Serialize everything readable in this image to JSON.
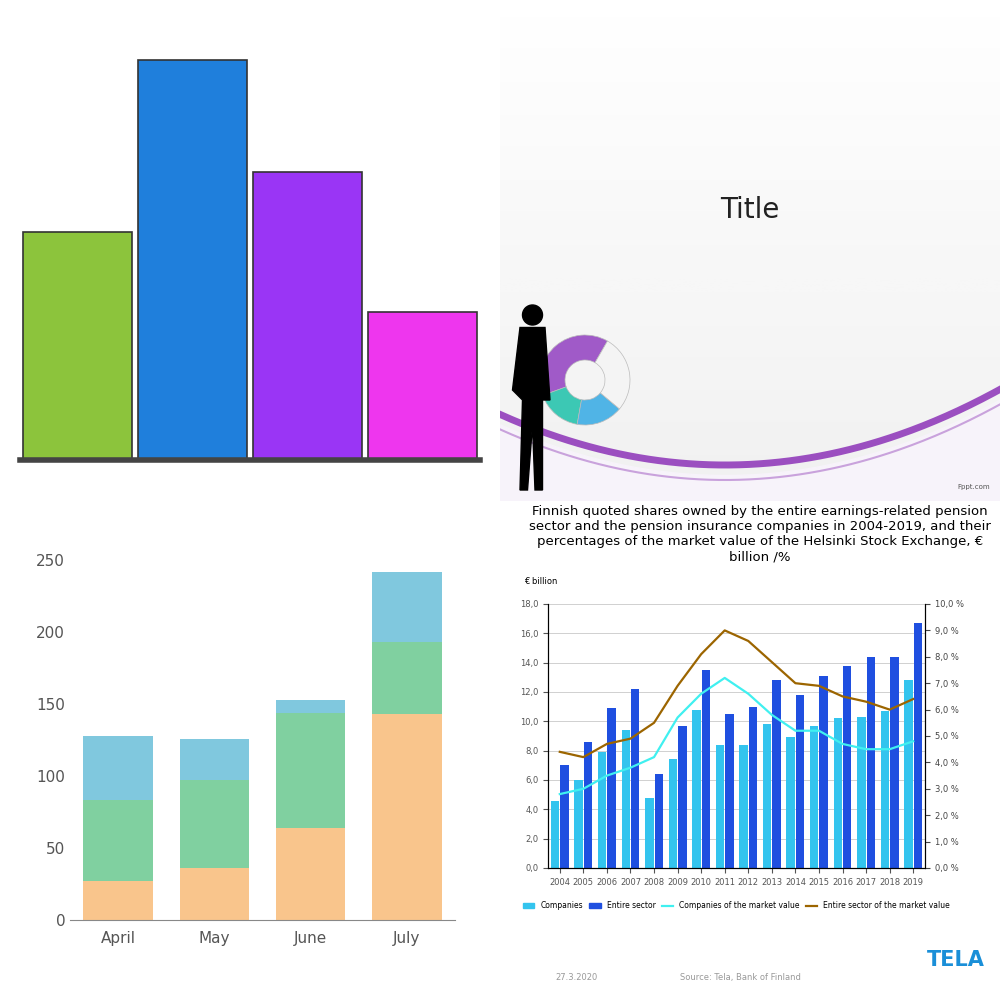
{
  "chart_data": [
    {
      "type": "bar",
      "categories": [
        null,
        null,
        null,
        null
      ],
      "values": [
        57,
        100,
        72,
        37
      ],
      "colors": [
        "#8cc43c",
        "#1f7fdc",
        "#9a35f5",
        "#ee36ee"
      ],
      "ylim": [
        0,
        110
      ],
      "tick_labels": false
    },
    {
      "type": "bar",
      "stacked": true,
      "categories": [
        "April",
        "May",
        "June",
        "July"
      ],
      "series": [
        {
          "color": "#f9c58c",
          "values": [
            27,
            36,
            64,
            143
          ]
        },
        {
          "color": "#80d0a0",
          "values": [
            56,
            61,
            80,
            50
          ]
        },
        {
          "color": "#80c8de",
          "values": [
            45,
            29,
            9,
            49
          ]
        }
      ],
      "ylim": [
        0,
        250
      ],
      "yticks": [
        0,
        50,
        100,
        150,
        200,
        250
      ]
    },
    {
      "type": "bar",
      "title": "Finnish quoted shares owned by the entire earnings-related pension sector and the pension insurance companies in 2004-2019, and their percentages of the market value of the Helsinki Stock Exchange, € billion /%",
      "ylabel": "€ billion",
      "categories": [
        "2004",
        "2005",
        "2006",
        "2007",
        "2008",
        "2009",
        "2010",
        "2011",
        "2012",
        "2013",
        "2014",
        "2015",
        "2016",
        "2017",
        "2018",
        "2019"
      ],
      "series": [
        {
          "name": "Companies",
          "type": "bar",
          "color": "#33c4ee",
          "values": [
            4.6,
            6.0,
            7.9,
            9.4,
            4.8,
            7.4,
            10.8,
            8.4,
            8.4,
            9.8,
            8.9,
            9.7,
            10.2,
            10.3,
            10.7,
            12.8
          ]
        },
        {
          "name": "Entire sector",
          "type": "bar",
          "color": "#1f4fe0",
          "values": [
            7.0,
            8.6,
            10.9,
            12.2,
            6.4,
            9.7,
            13.5,
            10.5,
            11.0,
            12.8,
            11.8,
            13.1,
            13.8,
            14.4,
            14.4,
            16.7
          ]
        },
        {
          "name": "Companies of the market value",
          "type": "line",
          "axis": "y2",
          "color": "#40f0f0",
          "values": [
            2.8,
            3.0,
            3.5,
            3.8,
            4.2,
            5.7,
            6.6,
            7.2,
            6.6,
            5.8,
            5.2,
            5.2,
            4.7,
            4.5,
            4.5,
            4.8
          ]
        },
        {
          "name": "Entire sector of the market value",
          "type": "line",
          "axis": "y2",
          "color": "#9c6500",
          "values": [
            4.4,
            4.2,
            4.7,
            4.9,
            5.5,
            6.9,
            8.1,
            9.0,
            8.6,
            7.8,
            7.0,
            6.9,
            6.5,
            6.3,
            6.0,
            6.4
          ]
        }
      ],
      "ylim": [
        0,
        18
      ],
      "yticks": [
        {
          "value": 0,
          "label": "0,0"
        },
        {
          "value": 2,
          "label": "2,0"
        },
        {
          "value": 4,
          "label": "4,0"
        },
        {
          "value": 6,
          "label": "6,0"
        },
        {
          "value": 8,
          "label": "8,0"
        },
        {
          "value": 10,
          "label": "10,0"
        },
        {
          "value": 12,
          "label": "12,0"
        },
        {
          "value": 14,
          "label": "14,0"
        },
        {
          "value": 16,
          "label": "16,0"
        },
        {
          "value": 18,
          "label": "18,0"
        }
      ],
      "y2lim": [
        0,
        10
      ],
      "y2ticks": [
        {
          "value": 0,
          "label": "0,0 %"
        },
        {
          "value": 1,
          "label": "1,0 %"
        },
        {
          "value": 2,
          "label": "2,0 %"
        },
        {
          "value": 3,
          "label": "3,0 %"
        },
        {
          "value": 4,
          "label": "4,0 %"
        },
        {
          "value": 5,
          "label": "5,0 %"
        },
        {
          "value": 6,
          "label": "6,0 %"
        },
        {
          "value": 7,
          "label": "7,0 %"
        },
        {
          "value": 8,
          "label": "8,0 %"
        },
        {
          "value": 9,
          "label": "9,0 %"
        },
        {
          "value": 10,
          "label": "10,0 %"
        }
      ],
      "grid": true,
      "legend": "bottom",
      "annotations": [
        "27.3.2020",
        "Source: Tela, Bank of Finland",
        "TELA"
      ]
    }
  ],
  "slide": {
    "title": "Title",
    "footer": "Fppt.com"
  }
}
